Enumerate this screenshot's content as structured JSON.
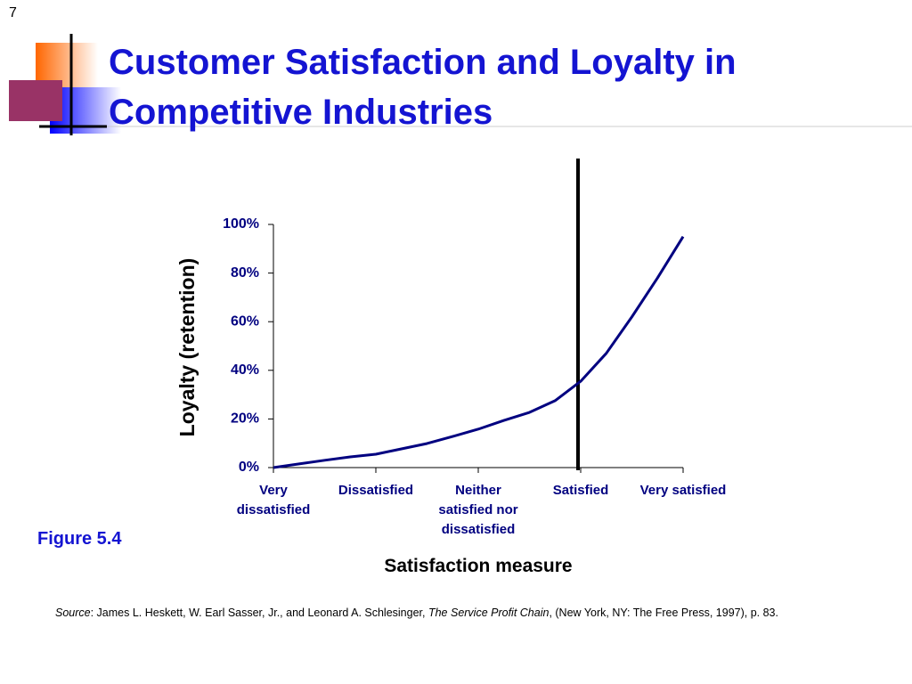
{
  "slide_number": "7",
  "title": "Customer Satisfaction and Loyalty in Competitive Industries",
  "figure_label": "Figure 5.4",
  "source": {
    "label": "Source",
    "authors": ": James L. Heskett, W. Earl Sasser, Jr., and Leonard A. Schlesinger, ",
    "book": "The Service Profit Chain",
    "rest": ", (New York, NY: The Free Press, 1997), p. 83."
  },
  "chart_data": {
    "type": "line",
    "color": "#000080",
    "x_label": "Satisfaction measure",
    "y_label": "Loyalty (retention)",
    "x": [
      0,
      0.25,
      0.5,
      0.75,
      1,
      1.25,
      1.5,
      1.75,
      2,
      2.25,
      2.5,
      2.75,
      3,
      3.25,
      3.5,
      3.75,
      4
    ],
    "values": [
      0,
      1.5,
      3,
      4.4,
      5.5,
      7.7,
      9.9,
      12.8,
      15.8,
      19.4,
      22.7,
      27.5,
      35.5,
      47,
      62,
      78,
      95
    ],
    "xlim": [
      0,
      4
    ],
    "ylim": [
      0,
      100
    ],
    "xticks": [
      {
        "value": 0,
        "label": "Very dissatisfied"
      },
      {
        "value": 1,
        "label": "Dissatisfied"
      },
      {
        "value": 2,
        "label": "Neither satisfied nor dissatisfied"
      },
      {
        "value": 3,
        "label": "Satisfied"
      },
      {
        "value": 4,
        "label": "Very satisfied"
      }
    ],
    "yticks": [
      {
        "value": 0,
        "label": "0%"
      },
      {
        "value": 20,
        "label": "20%"
      },
      {
        "value": 40,
        "label": "40%"
      },
      {
        "value": 60,
        "label": "60%"
      },
      {
        "value": 80,
        "label": "80%"
      },
      {
        "value": 100,
        "label": "100%"
      }
    ],
    "grid": false
  }
}
